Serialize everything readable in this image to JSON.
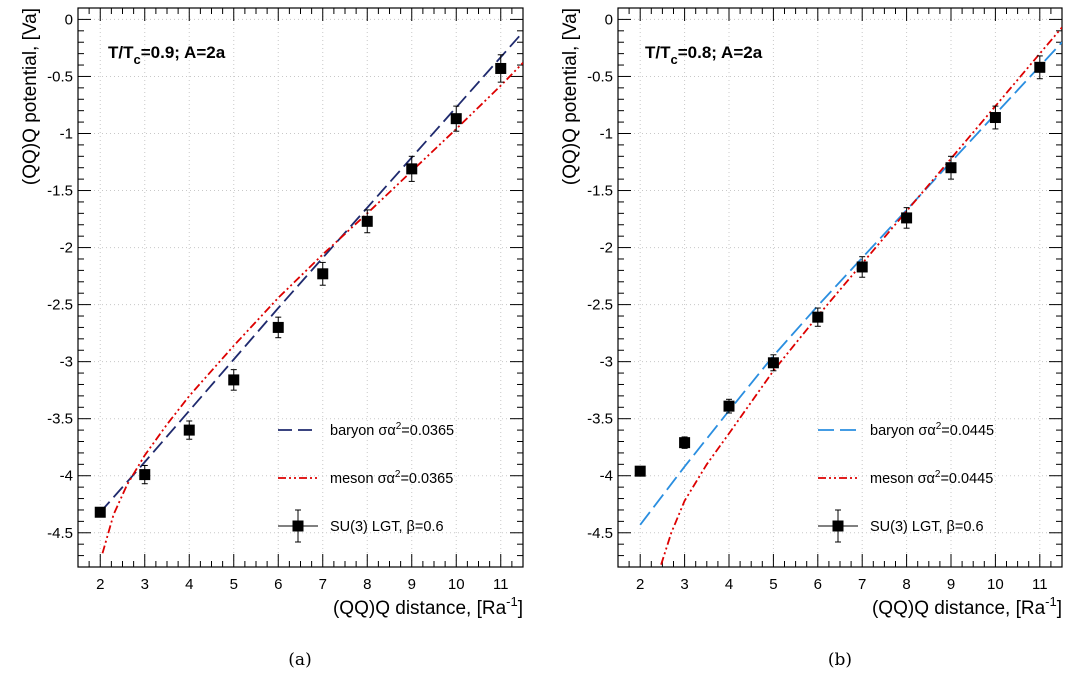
{
  "chart_data": [
    {
      "type": "scatter",
      "panel_caption": "(a)",
      "title": "T/T",
      "title_sub": "c",
      "title_tail": "=0.9; A=2a",
      "xlabel": "(QQ)Q distance, [Ra",
      "xlabel_sup": "-1",
      "xlabel_tail": "]",
      "ylabel": "(QQ)Q potential, [Va]",
      "xlim": [
        1.5,
        11.5
      ],
      "ylim": [
        -4.8,
        0.1
      ],
      "xticks": [
        2,
        3,
        4,
        5,
        6,
        7,
        8,
        9,
        10,
        11
      ],
      "xtick_labels": [
        "2",
        "3",
        "4",
        "5",
        "6",
        "7",
        "8",
        "9",
        "10",
        "11"
      ],
      "yticks": [
        0,
        -0.5,
        -1,
        -1.5,
        -2,
        -2.5,
        -3,
        -3.5,
        -4,
        -4.5
      ],
      "ytick_labels": [
        "0",
        "-0.5",
        "-1",
        "-1.5",
        "-2",
        "-2.5",
        "-3",
        "-3.5",
        "-4",
        "-4.5"
      ],
      "grid": true,
      "legend_position": "bottom-right",
      "series": [
        {
          "name": "SU(3) LGT, β=0.6",
          "kind": "points",
          "color": "#000000",
          "x": [
            2,
            3,
            4,
            5,
            6,
            7,
            8,
            9,
            10,
            11
          ],
          "y": [
            -4.32,
            -3.99,
            -3.6,
            -3.16,
            -2.7,
            -2.23,
            -1.77,
            -1.31,
            -0.87,
            -0.43
          ],
          "err": [
            0.04,
            0.08,
            0.08,
            0.09,
            0.09,
            0.1,
            0.1,
            0.11,
            0.11,
            0.12
          ]
        },
        {
          "name_prefix": "baryon ",
          "name_sym": "σα",
          "name_sup": "2",
          "name_tail": "=0.0365",
          "kind": "line",
          "color": "#1f2a6e",
          "dash": "14,6",
          "x": [
            2,
            3,
            4,
            5,
            6,
            7,
            8,
            9,
            10,
            11,
            11.5
          ],
          "y": [
            -4.32,
            -3.88,
            -3.43,
            -2.98,
            -2.53,
            -2.09,
            -1.65,
            -1.21,
            -0.77,
            -0.33,
            -0.11
          ]
        },
        {
          "name_prefix": "meson ",
          "name_sym": "σα",
          "name_sup": "2",
          "name_tail": "=0.0365",
          "kind": "line",
          "color": "#dd0000",
          "dash": "8,3,2,3,2,3",
          "x": [
            2.05,
            2.3,
            2.6,
            3,
            3.5,
            4,
            5,
            6,
            7,
            8,
            9,
            10,
            11,
            11.5
          ],
          "y": [
            -4.68,
            -4.34,
            -4.08,
            -3.82,
            -3.55,
            -3.3,
            -2.86,
            -2.44,
            -2.06,
            -1.7,
            -1.33,
            -0.96,
            -0.58,
            -0.38
          ]
        }
      ]
    },
    {
      "type": "scatter",
      "panel_caption": "(b)",
      "title": "T/T",
      "title_sub": "c",
      "title_tail": "=0.8; A=2a",
      "xlabel": "(QQ)Q distance, [Ra",
      "xlabel_sup": "-1",
      "xlabel_tail": "]",
      "ylabel": "(QQ)Q potential, [Va]",
      "xlim": [
        1.5,
        11.5
      ],
      "ylim": [
        -4.8,
        0.1
      ],
      "xticks": [
        2,
        3,
        4,
        5,
        6,
        7,
        8,
        9,
        10,
        11
      ],
      "xtick_labels": [
        "2",
        "3",
        "4",
        "5",
        "6",
        "7",
        "8",
        "9",
        "10",
        "11"
      ],
      "yticks": [
        0,
        -0.5,
        -1,
        -1.5,
        -2,
        -2.5,
        -3,
        -3.5,
        -4,
        -4.5
      ],
      "ytick_labels": [
        "0",
        "-0.5",
        "-1",
        "-1.5",
        "-2",
        "-2.5",
        "-3",
        "-3.5",
        "-4",
        "-4.5"
      ],
      "grid": true,
      "legend_position": "bottom-right",
      "series": [
        {
          "name": "SU(3) LGT, β=0.6",
          "kind": "points",
          "color": "#000000",
          "x": [
            2,
            3,
            4,
            5,
            6,
            7,
            8,
            9,
            10,
            11
          ],
          "y": [
            -3.96,
            -3.71,
            -3.39,
            -3.01,
            -2.61,
            -2.17,
            -1.74,
            -1.3,
            -0.86,
            -0.42
          ],
          "err": [
            0.03,
            0.05,
            0.06,
            0.07,
            0.08,
            0.09,
            0.09,
            0.1,
            0.1,
            0.1
          ]
        },
        {
          "name_prefix": "baryon ",
          "name_sym": "σα",
          "name_sup": "2",
          "name_tail": "=0.0445",
          "kind": "line",
          "color": "#2a8ee0",
          "dash": "16,6",
          "x": [
            2,
            3,
            4,
            5,
            6,
            7,
            8,
            9,
            10,
            11,
            11.5
          ],
          "y": [
            -4.43,
            -3.92,
            -3.43,
            -2.95,
            -2.51,
            -2.09,
            -1.67,
            -1.25,
            -0.83,
            -0.41,
            -0.2
          ]
        },
        {
          "name_prefix": "meson ",
          "name_sym": "σα",
          "name_sup": "2",
          "name_tail": "=0.0445",
          "kind": "line",
          "color": "#dd0000",
          "dash": "8,3,2,3,2,3",
          "x": [
            2.47,
            2.7,
            3,
            3.5,
            4,
            5,
            6,
            7,
            8,
            9,
            10,
            11,
            11.5
          ],
          "y": [
            -4.78,
            -4.5,
            -4.22,
            -3.9,
            -3.63,
            -3.08,
            -2.6,
            -2.14,
            -1.68,
            -1.22,
            -0.76,
            -0.3,
            -0.07
          ]
        }
      ]
    }
  ]
}
